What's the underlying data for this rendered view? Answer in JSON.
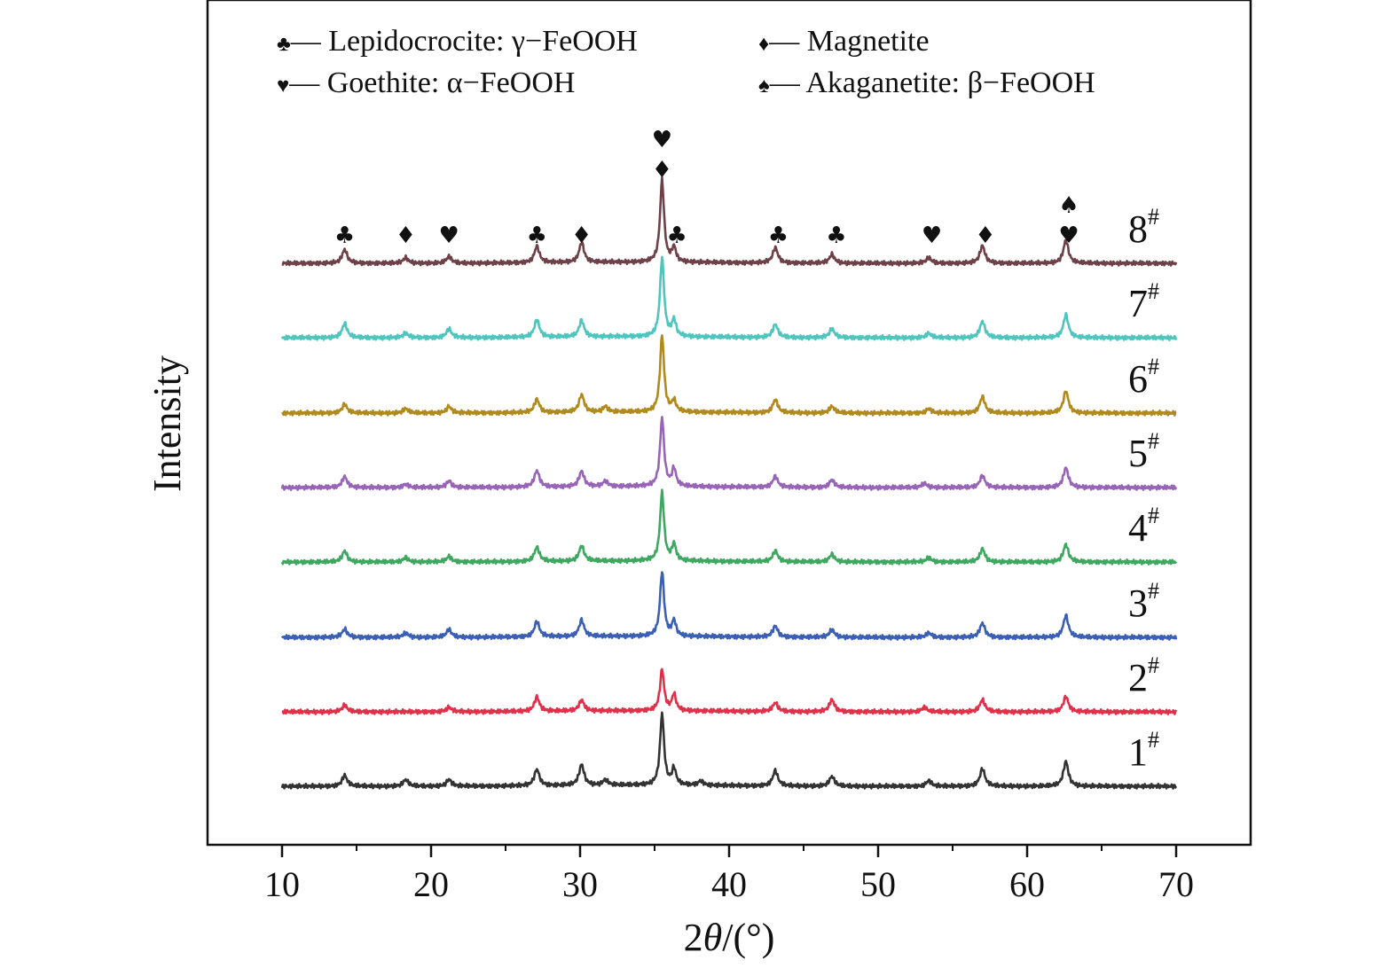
{
  "chart_data": {
    "type": "line",
    "xlabel_prefix": "2",
    "xlabel_theta": "θ",
    "xlabel_suffix": "/(°)",
    "ylabel": "Intensity",
    "xlim": [
      5,
      75
    ],
    "x_ticks": [
      10,
      20,
      30,
      40,
      50,
      60,
      70
    ],
    "y_ticks_shown": false,
    "legend": [
      {
        "symbol": "♣",
        "dash": "—",
        "label": "Lepidocrocite: γ−FeOOH"
      },
      {
        "symbol": "♦",
        "dash": "—",
        "label": "Magnetite"
      },
      {
        "symbol": "♥",
        "dash": "—",
        "label": "Goethite: α−FeOOH"
      },
      {
        "symbol": "♠",
        "dash": "—",
        "label": "Akaganetite: β−FeOOH"
      }
    ],
    "legend_position": "top",
    "series": [
      {
        "name": "1",
        "sup": "#",
        "color": "#333333",
        "peaks": [
          [
            14.2,
            0.2
          ],
          [
            18.3,
            0.12
          ],
          [
            21.2,
            0.12
          ],
          [
            27.1,
            0.3
          ],
          [
            30.1,
            0.38
          ],
          [
            31.7,
            0.1
          ],
          [
            35.5,
            1.3
          ],
          [
            36.3,
            0.3
          ],
          [
            38.1,
            0.08
          ],
          [
            43.1,
            0.28
          ],
          [
            46.9,
            0.18
          ],
          [
            53.4,
            0.1
          ],
          [
            57.0,
            0.32
          ],
          [
            62.6,
            0.45
          ]
        ]
      },
      {
        "name": "2",
        "sup": "#",
        "color": "#e0304a",
        "peaks": [
          [
            14.2,
            0.12
          ],
          [
            21.2,
            0.08
          ],
          [
            27.1,
            0.26
          ],
          [
            30.1,
            0.2
          ],
          [
            35.5,
            0.75
          ],
          [
            36.3,
            0.3
          ],
          [
            43.1,
            0.16
          ],
          [
            46.9,
            0.22
          ],
          [
            53.1,
            0.08
          ],
          [
            57.0,
            0.22
          ],
          [
            62.6,
            0.28
          ]
        ]
      },
      {
        "name": "3",
        "sup": "#",
        "color": "#3a5fb4",
        "peaks": [
          [
            14.2,
            0.15
          ],
          [
            18.3,
            0.08
          ],
          [
            21.2,
            0.14
          ],
          [
            27.1,
            0.28
          ],
          [
            30.1,
            0.3
          ],
          [
            35.5,
            1.18
          ],
          [
            36.3,
            0.28
          ],
          [
            43.1,
            0.2
          ],
          [
            46.9,
            0.14
          ],
          [
            53.4,
            0.08
          ],
          [
            57.0,
            0.26
          ],
          [
            62.6,
            0.4
          ]
        ]
      },
      {
        "name": "4",
        "sup": "#",
        "color": "#3ea861",
        "peaks": [
          [
            14.2,
            0.2
          ],
          [
            18.3,
            0.08
          ],
          [
            21.2,
            0.1
          ],
          [
            27.1,
            0.26
          ],
          [
            30.1,
            0.28
          ],
          [
            35.5,
            1.25
          ],
          [
            36.3,
            0.3
          ],
          [
            43.1,
            0.2
          ],
          [
            46.9,
            0.14
          ],
          [
            53.4,
            0.08
          ],
          [
            57.0,
            0.24
          ],
          [
            62.6,
            0.32
          ]
        ]
      },
      {
        "name": "5",
        "sup": "#",
        "color": "#9764b8",
        "peaks": [
          [
            14.2,
            0.2
          ],
          [
            18.3,
            0.06
          ],
          [
            21.2,
            0.12
          ],
          [
            27.1,
            0.3
          ],
          [
            30.1,
            0.28
          ],
          [
            31.7,
            0.1
          ],
          [
            35.5,
            1.25
          ],
          [
            36.3,
            0.32
          ],
          [
            43.1,
            0.2
          ],
          [
            46.9,
            0.14
          ],
          [
            53.1,
            0.08
          ],
          [
            57.0,
            0.22
          ],
          [
            62.6,
            0.36
          ]
        ]
      },
      {
        "name": "6",
        "sup": "#",
        "color": "#b08a1c",
        "peaks": [
          [
            14.2,
            0.16
          ],
          [
            18.3,
            0.08
          ],
          [
            21.2,
            0.12
          ],
          [
            27.1,
            0.24
          ],
          [
            30.1,
            0.32
          ],
          [
            31.7,
            0.1
          ],
          [
            35.5,
            1.4
          ],
          [
            36.3,
            0.2
          ],
          [
            43.1,
            0.24
          ],
          [
            46.9,
            0.12
          ],
          [
            53.4,
            0.08
          ],
          [
            57.0,
            0.3
          ],
          [
            62.6,
            0.4
          ]
        ]
      },
      {
        "name": "7",
        "sup": "#",
        "color": "#4ec5bd",
        "peaks": [
          [
            14.2,
            0.26
          ],
          [
            18.3,
            0.08
          ],
          [
            21.2,
            0.16
          ],
          [
            27.1,
            0.32
          ],
          [
            30.1,
            0.3
          ],
          [
            35.5,
            1.45
          ],
          [
            36.3,
            0.3
          ],
          [
            43.1,
            0.24
          ],
          [
            46.9,
            0.16
          ],
          [
            53.4,
            0.08
          ],
          [
            57.0,
            0.3
          ],
          [
            62.6,
            0.42
          ]
        ]
      },
      {
        "name": "8",
        "sup": "#",
        "color": "#6e4048",
        "peaks": [
          [
            14.2,
            0.25
          ],
          [
            18.3,
            0.1
          ],
          [
            21.2,
            0.12
          ],
          [
            27.1,
            0.3
          ],
          [
            30.1,
            0.36
          ],
          [
            35.5,
            1.5
          ],
          [
            36.3,
            0.26
          ],
          [
            43.1,
            0.28
          ],
          [
            46.9,
            0.16
          ],
          [
            53.4,
            0.1
          ],
          [
            57.0,
            0.32
          ],
          [
            62.6,
            0.42
          ]
        ]
      }
    ],
    "phase_markers": [
      {
        "x": 14.2,
        "symbols": [
          "♣"
        ]
      },
      {
        "x": 18.3,
        "symbols": [
          "♦"
        ]
      },
      {
        "x": 21.2,
        "symbols": [
          "♥"
        ]
      },
      {
        "x": 27.1,
        "symbols": [
          "♣"
        ]
      },
      {
        "x": 30.1,
        "symbols": [
          "♦"
        ]
      },
      {
        "x": 35.5,
        "symbols": [
          "♥",
          "♦"
        ]
      },
      {
        "x": 36.5,
        "symbols": [
          "♣"
        ]
      },
      {
        "x": 43.3,
        "symbols": [
          "♣"
        ]
      },
      {
        "x": 47.2,
        "symbols": [
          "♣"
        ]
      },
      {
        "x": 53.6,
        "symbols": [
          "♥"
        ]
      },
      {
        "x": 57.2,
        "symbols": [
          "♦"
        ]
      },
      {
        "x": 62.8,
        "symbols": [
          "♠",
          "♥"
        ]
      }
    ]
  }
}
